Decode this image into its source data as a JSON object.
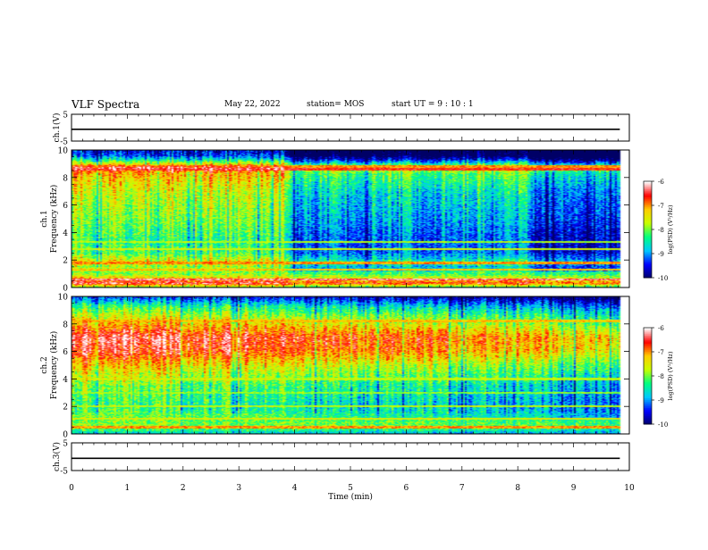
{
  "header": {
    "title": "VLF Spectra",
    "date": "May 22, 2022",
    "station": "station= MOS",
    "start": "start  UT =   9 : 10 : 1"
  },
  "chart_data": [
    {
      "type": "line",
      "panel": "ch.1 waveform",
      "ylabel": "ch.1(V)",
      "ylim": [
        -5,
        5
      ],
      "yticks": [
        "5",
        "-5"
      ],
      "xlim": [
        0,
        10
      ],
      "value": -0.6
    },
    {
      "type": "heatmap",
      "panel": "ch.1 spectrogram",
      "ylabel": "ch.1\nFrequency (kHz)",
      "ylabel_lines": [
        "ch.1",
        "Frequency (kHz)"
      ],
      "ylim": [
        0,
        10
      ],
      "yticks": [
        "0",
        "2",
        "4",
        "6",
        "8",
        "10"
      ],
      "xlim": [
        0,
        10
      ],
      "data_xmax": 9.83,
      "colorbar": {
        "label": "log(PSD) (V²/Hz)",
        "range": [
          -10,
          -6
        ],
        "ticks": [
          "-6",
          "-7",
          "-8",
          "-9",
          "-10"
        ]
      },
      "profile": [
        {
          "f": 0.0,
          "v": -8.2
        },
        {
          "f": 0.3,
          "v": -6.5
        },
        {
          "f": 0.7,
          "v": -7.4
        },
        {
          "f": 1.0,
          "v": -8.0
        },
        {
          "f": 1.5,
          "v": -8.3
        },
        {
          "f": 1.8,
          "v": -7.8
        },
        {
          "f": 2.5,
          "v": -8.6
        },
        {
          "f": 3.5,
          "v": -8.7
        },
        {
          "f": 5.0,
          "v": -8.4
        },
        {
          "f": 7.0,
          "v": -8.1
        },
        {
          "f": 8.3,
          "v": -7.6
        },
        {
          "f": 8.7,
          "v": -6.9
        },
        {
          "f": 9.0,
          "v": -8.0
        },
        {
          "f": 9.3,
          "v": -9.0
        },
        {
          "f": 9.6,
          "v": -9.8
        },
        {
          "f": 10.0,
          "v": -10.0
        }
      ],
      "time_modulation": [
        {
          "t": 0.0,
          "d": 0.6
        },
        {
          "t": 3.8,
          "d": 0.5
        },
        {
          "t": 3.95,
          "d": -0.6
        },
        {
          "t": 5.5,
          "d": -0.5
        },
        {
          "t": 7.5,
          "d": -0.3
        },
        {
          "t": 8.2,
          "d": -0.4
        },
        {
          "t": 8.35,
          "d": -1.1
        },
        {
          "t": 9.0,
          "d": -0.8
        },
        {
          "t": 9.83,
          "d": -1.1
        }
      ],
      "lines": [
        {
          "f": 0.6,
          "v": -6.3
        },
        {
          "f": 1.3,
          "v": -7.2
        },
        {
          "f": 1.8,
          "v": -7.0
        },
        {
          "f": 2.8,
          "v": -7.6
        },
        {
          "f": 3.3,
          "v": -7.8
        },
        {
          "f": 8.6,
          "v": -6.6
        },
        {
          "f": 8.8,
          "v": -7.0
        }
      ]
    },
    {
      "type": "heatmap",
      "panel": "ch.2 spectrogram",
      "ylabel": "ch.2\nFrequency (kHz)",
      "ylabel_lines": [
        "ch.2",
        "Frequency (kHz)"
      ],
      "ylim": [
        0,
        10
      ],
      "yticks": [
        "0",
        "2",
        "4",
        "6",
        "8",
        "10"
      ],
      "xlim": [
        0,
        10
      ],
      "data_xmax": 9.83,
      "colorbar": {
        "label": "log(PSD) (V²/Hz)",
        "range": [
          -10,
          -6
        ],
        "ticks": [
          "-6",
          "-7",
          "-8",
          "-9",
          "-10"
        ]
      },
      "profile": [
        {
          "f": 0.0,
          "v": -8.8
        },
        {
          "f": 0.5,
          "v": -7.9
        },
        {
          "f": 1.0,
          "v": -8.1
        },
        {
          "f": 2.0,
          "v": -8.5
        },
        {
          "f": 3.5,
          "v": -8.2
        },
        {
          "f": 5.0,
          "v": -7.5
        },
        {
          "f": 6.0,
          "v": -6.8
        },
        {
          "f": 7.0,
          "v": -6.6
        },
        {
          "f": 7.8,
          "v": -7.2
        },
        {
          "f": 8.5,
          "v": -7.8
        },
        {
          "f": 9.2,
          "v": -8.4
        },
        {
          "f": 9.6,
          "v": -9.0
        },
        {
          "f": 10.0,
          "v": -9.6
        }
      ],
      "time_modulation": [
        {
          "t": 0.0,
          "d": 0.3
        },
        {
          "t": 3.8,
          "d": 0.2
        },
        {
          "t": 4.0,
          "d": -0.1
        },
        {
          "t": 6.0,
          "d": -0.2
        },
        {
          "t": 8.3,
          "d": -0.3
        },
        {
          "t": 9.0,
          "d": -0.6
        },
        {
          "t": 9.83,
          "d": -0.8
        }
      ],
      "lines": [
        {
          "f": 0.5,
          "v": -7.0
        },
        {
          "f": 1.1,
          "v": -7.5
        },
        {
          "f": 2.0,
          "v": -7.7
        },
        {
          "f": 3.0,
          "v": -7.9
        },
        {
          "f": 4.0,
          "v": -7.7
        },
        {
          "f": 8.2,
          "v": -7.2
        }
      ]
    },
    {
      "type": "line",
      "panel": "ch.3 waveform",
      "ylabel": "ch.3(V)",
      "ylim": [
        -5,
        5
      ],
      "yticks": [
        "5",
        "-5"
      ],
      "xlim": [
        0,
        10
      ],
      "value": -0.6
    }
  ],
  "x_axis": {
    "xlabel": "Time  (min)",
    "xlim": [
      0,
      10
    ],
    "ticks": [
      "0",
      "1",
      "2",
      "3",
      "4",
      "5",
      "6",
      "7",
      "8",
      "9",
      "10"
    ]
  },
  "colors": {
    "colormap": [
      "#000066",
      "#0000ff",
      "#00c8ff",
      "#00ff80",
      "#c8ff00",
      "#ffcc00",
      "#ff0000",
      "#ffffff"
    ]
  }
}
